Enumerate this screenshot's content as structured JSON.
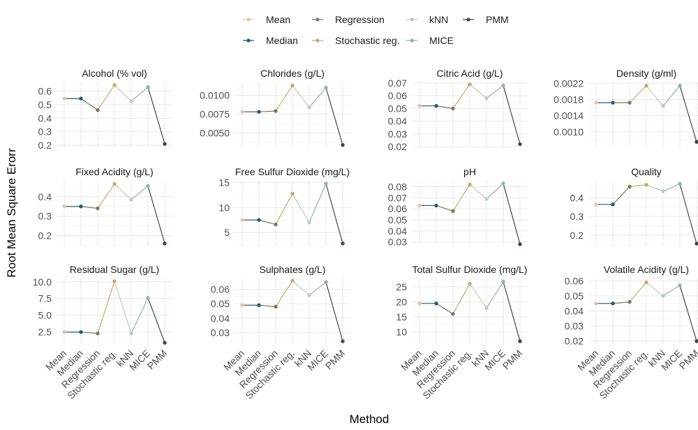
{
  "chart_data": {
    "type": "line",
    "xlabel": "Method",
    "ylabel": "Root Mean Square Erorr",
    "categories": [
      "Mean",
      "Median",
      "Regression",
      "Stochastic reg.",
      "kNN",
      "MICE",
      "PMM"
    ],
    "legend": {
      "position": "top",
      "items": [
        {
          "label": "Mean",
          "color": "#e8c4a4"
        },
        {
          "label": "Regression",
          "color": "#7d7a58"
        },
        {
          "label": "kNN",
          "color": "#b8cfb8"
        },
        {
          "label": "PMM",
          "color": "#3b4a44"
        },
        {
          "label": "Median",
          "color": "#1f5f7a"
        },
        {
          "label": "Stochastic reg.",
          "color": "#c9a870"
        },
        {
          "label": "MICE",
          "color": "#8ab5b3"
        }
      ]
    },
    "panels": [
      {
        "title": "Alcohol (% vol)",
        "values": [
          0.545,
          0.545,
          0.46,
          0.645,
          0.525,
          0.63,
          0.21
        ],
        "ylim": [
          0.18,
          0.67
        ],
        "yticks": [
          0.2,
          0.3,
          0.4,
          0.5,
          0.6
        ],
        "tick_labels": [
          "0.2",
          "0.3",
          "0.4",
          "0.5",
          "0.6"
        ]
      },
      {
        "title": "Chlorides (g/L)",
        "values": [
          0.0078,
          0.0078,
          0.0079,
          0.0113,
          0.0084,
          0.011,
          0.0034
        ],
        "ylim": [
          0.003,
          0.0118
        ],
        "yticks": [
          0.005,
          0.0075,
          0.01
        ],
        "tick_labels": [
          "0.0050",
          "0.0075",
          "0.0100"
        ]
      },
      {
        "title": "Citric Acid (g/L)",
        "values": [
          0.052,
          0.052,
          0.05,
          0.069,
          0.058,
          0.068,
          0.022
        ],
        "ylim": [
          0.019,
          0.071
        ],
        "yticks": [
          0.02,
          0.03,
          0.04,
          0.05,
          0.06,
          0.07
        ],
        "tick_labels": [
          "0.02",
          "0.03",
          "0.04",
          "0.05",
          "0.06",
          "0.07"
        ]
      },
      {
        "title": "Density (g/ml)",
        "values": [
          0.00172,
          0.00172,
          0.00172,
          0.00214,
          0.00164,
          0.00214,
          0.00075
        ],
        "ylim": [
          0.0006,
          0.00224
        ],
        "yticks": [
          0.001,
          0.0014,
          0.0018,
          0.0022
        ],
        "tick_labels": [
          "0.0010",
          "0.0014",
          "0.0018",
          "0.0022"
        ]
      },
      {
        "title": "Fixed Acidity (g/L)",
        "values": [
          0.35,
          0.35,
          0.34,
          0.465,
          0.385,
          0.455,
          0.16
        ],
        "ylim": [
          0.145,
          0.485
        ],
        "yticks": [
          0.2,
          0.3,
          0.4
        ],
        "tick_labels": [
          "0.2",
          "0.3",
          "0.4"
        ]
      },
      {
        "title": "Free Sulfur Dioxide (mg/L)",
        "values": [
          7.5,
          7.5,
          6.6,
          12.8,
          7.0,
          14.8,
          2.8
        ],
        "ylim": [
          2.2,
          15.5
        ],
        "yticks": [
          5,
          10,
          15
        ],
        "tick_labels": [
          "5",
          "10",
          "15"
        ]
      },
      {
        "title": "pH",
        "values": [
          0.063,
          0.063,
          0.058,
          0.082,
          0.069,
          0.083,
          0.028
        ],
        "ylim": [
          0.026,
          0.086
        ],
        "yticks": [
          0.03,
          0.04,
          0.05,
          0.06,
          0.07,
          0.08
        ],
        "tick_labels": [
          "0.03",
          "0.04",
          "0.05",
          "0.06",
          "0.07",
          "0.08"
        ]
      },
      {
        "title": "Quality",
        "values": [
          0.365,
          0.365,
          0.46,
          0.47,
          0.435,
          0.475,
          0.155
        ],
        "ylim": [
          0.14,
          0.495
        ],
        "yticks": [
          0.2,
          0.3,
          0.4
        ],
        "tick_labels": [
          "0.2",
          "0.3",
          "0.4"
        ]
      },
      {
        "title": "Residual Sugar (g/L)",
        "values": [
          2.5,
          2.5,
          2.3,
          10.1,
          2.3,
          7.6,
          0.9
        ],
        "ylim": [
          0.7,
          10.6
        ],
        "yticks": [
          2.5,
          5,
          7.5,
          10
        ],
        "tick_labels": [
          "2.5",
          "5.0",
          "7.5",
          "10.0"
        ]
      },
      {
        "title": "Sulphates (g/L)",
        "values": [
          0.049,
          0.049,
          0.048,
          0.066,
          0.056,
          0.065,
          0.024
        ],
        "ylim": [
          0.022,
          0.068
        ],
        "yticks": [
          0.03,
          0.04,
          0.05,
          0.06
        ],
        "tick_labels": [
          "0.03",
          "0.04",
          "0.05",
          "0.06"
        ]
      },
      {
        "title": "Total Sulfur Dioxide (mg/L)",
        "values": [
          19.5,
          19.5,
          16.0,
          26.0,
          18.0,
          26.7,
          7.0
        ],
        "ylim": [
          6.0,
          28.0
        ],
        "yticks": [
          10,
          15,
          20,
          25
        ],
        "tick_labels": [
          "10",
          "15",
          "20",
          "25"
        ]
      },
      {
        "title": "Volatile Acidity (g/L)",
        "values": [
          0.045,
          0.045,
          0.046,
          0.059,
          0.05,
          0.057,
          0.02
        ],
        "ylim": [
          0.018,
          0.062
        ],
        "yticks": [
          0.02,
          0.03,
          0.04,
          0.05,
          0.06
        ],
        "tick_labels": [
          "0.02",
          "0.03",
          "0.04",
          "0.05",
          "0.06"
        ]
      }
    ]
  }
}
